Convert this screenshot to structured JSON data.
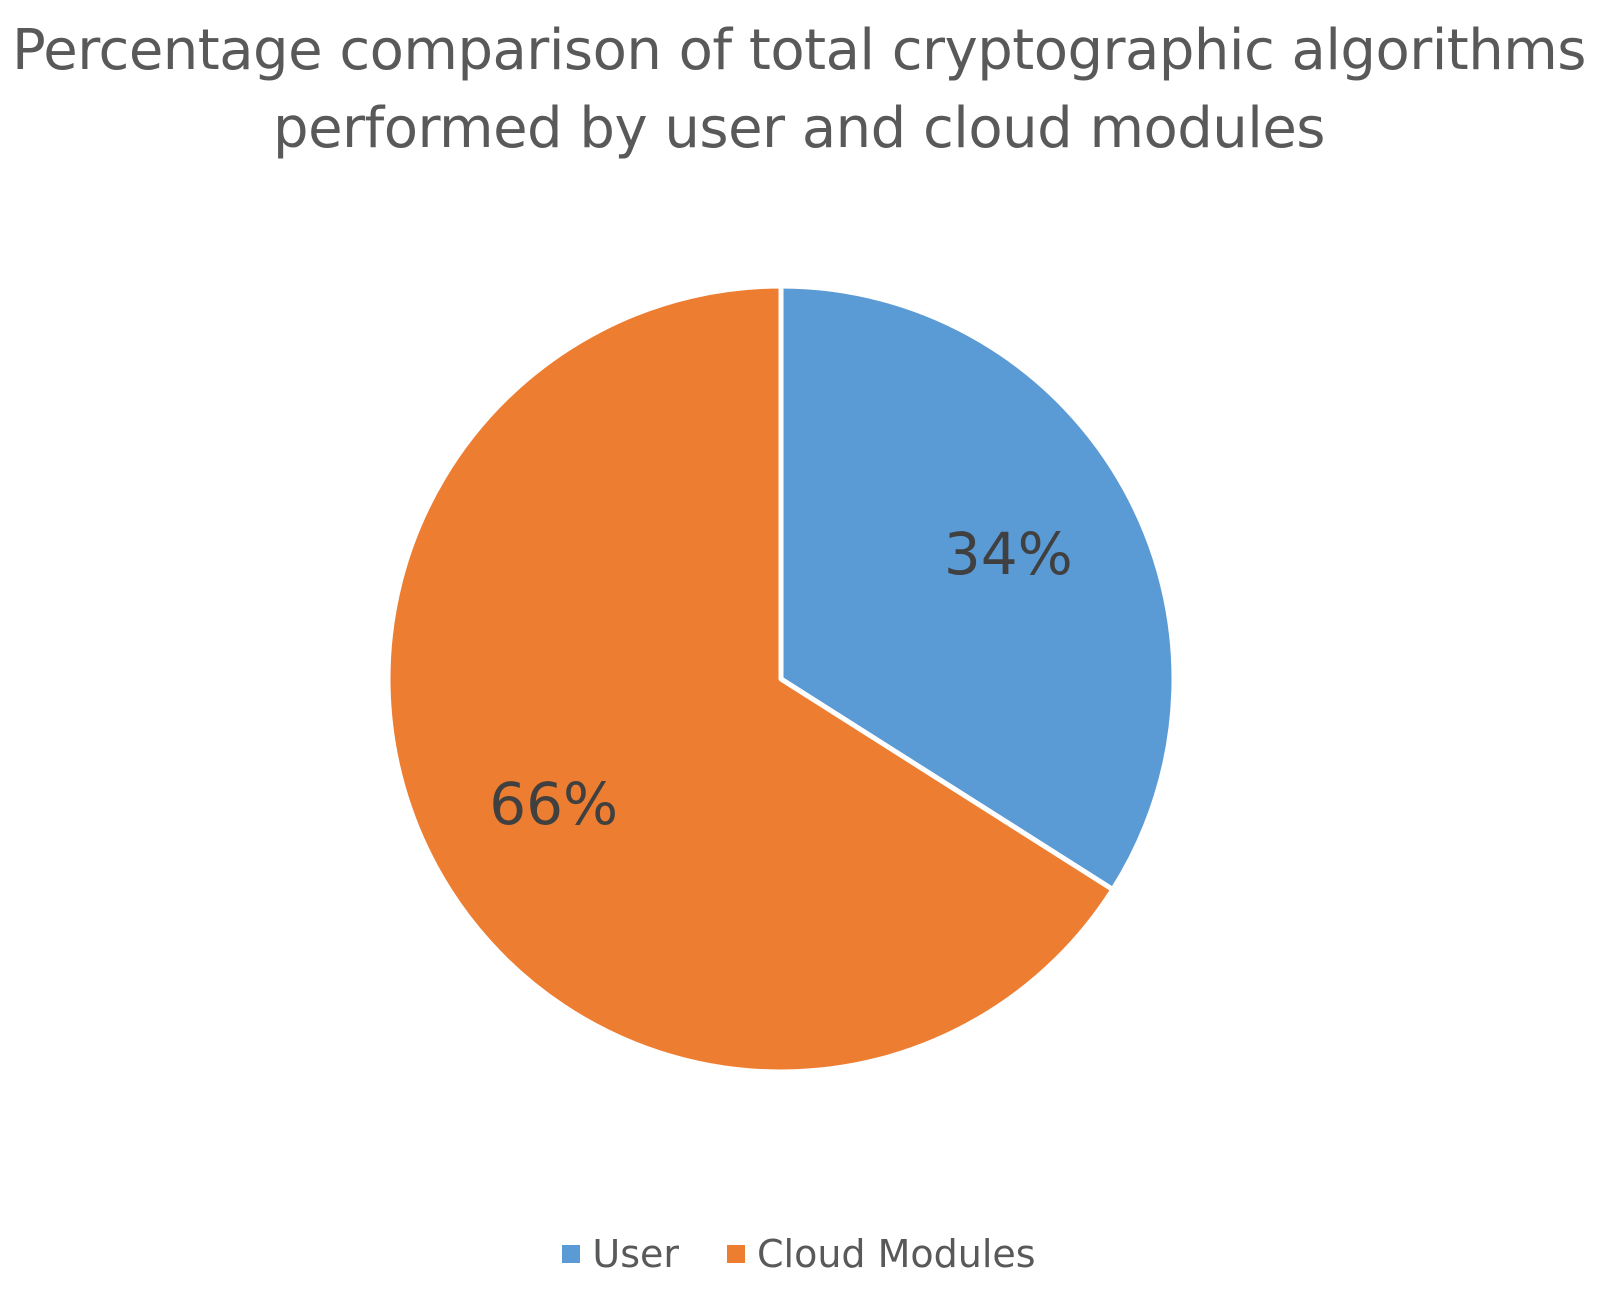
{
  "chart_data": {
    "type": "pie",
    "title_lines": [
      "Percentage comparison of total cryptographic algorithms",
      "performed by user and cloud modules"
    ],
    "slices": [
      {
        "name": "User",
        "value": 34,
        "label": "34%",
        "color": "#5B9BD5"
      },
      {
        "name": "Cloud Modules",
        "value": 66,
        "label": "66%",
        "color": "#ED7D31"
      }
    ],
    "legend_position": "bottom",
    "start_angle_deg": 0,
    "direction": "clockwise"
  }
}
